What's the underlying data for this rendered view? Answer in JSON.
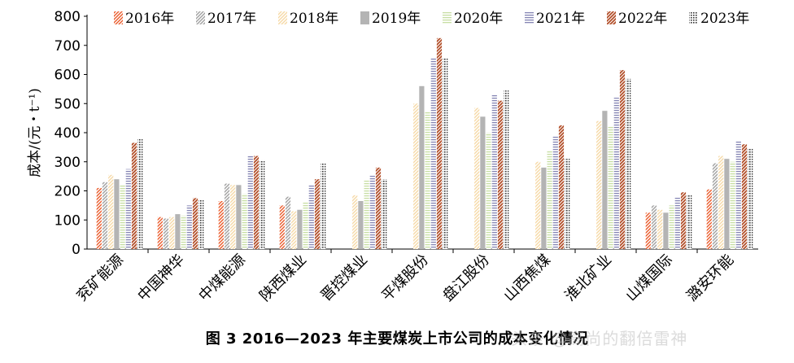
{
  "caption": "图 3   2016—2023 年主要煤炭上市公司的成本变化情况",
  "watermark": "头条 @高尚的翻倍雷神",
  "chart_data": {
    "type": "bar",
    "ylabel": "成本/(元・t⁻¹)",
    "ylim": [
      0,
      800
    ],
    "yticks": [
      0,
      100,
      200,
      300,
      400,
      500,
      600,
      700,
      800
    ],
    "grid": false,
    "legend_position": "top",
    "categories": [
      "兖矿能源",
      "中国神华",
      "中煤能源",
      "陕西煤业",
      "晋控煤业",
      "平煤股份",
      "盘江股份",
      "山西焦煤",
      "淮北矿业",
      "山煤国际",
      "潞安环能"
    ],
    "series": [
      {
        "name": "2016年",
        "color": "#ea5a2a",
        "pattern": "diag",
        "values": [
          210,
          110,
          165,
          150,
          null,
          null,
          null,
          null,
          null,
          125,
          205
        ]
      },
      {
        "name": "2017年",
        "color": "#a0a0a0",
        "pattern": "diag",
        "values": [
          230,
          105,
          225,
          180,
          null,
          null,
          null,
          null,
          null,
          150,
          295
        ]
      },
      {
        "name": "2018年",
        "color": "#f6d9a5",
        "pattern": "diag",
        "values": [
          255,
          110,
          220,
          130,
          185,
          500,
          485,
          300,
          440,
          135,
          320
        ]
      },
      {
        "name": "2019年",
        "color": "#b4b4b4",
        "pattern": "solid",
        "values": [
          240,
          120,
          220,
          135,
          165,
          560,
          455,
          280,
          475,
          125,
          310
        ]
      },
      {
        "name": "2020年",
        "color": "#c7dea3",
        "pattern": "hlines",
        "values": [
          220,
          115,
          190,
          160,
          235,
          470,
          400,
          340,
          420,
          150,
          300
        ]
      },
      {
        "name": "2021年",
        "color": "#8585b4",
        "pattern": "hlines",
        "values": [
          275,
          150,
          320,
          220,
          255,
          655,
          530,
          390,
          520,
          180,
          370
        ]
      },
      {
        "name": "2022年",
        "color": "#b24e28",
        "pattern": "diagdense",
        "values": [
          365,
          175,
          320,
          240,
          280,
          725,
          510,
          425,
          615,
          195,
          360
        ]
      },
      {
        "name": "2023年",
        "color": "#333333",
        "pattern": "dots",
        "values": [
          380,
          170,
          305,
          295,
          240,
          655,
          545,
          310,
          585,
          185,
          345
        ]
      }
    ]
  }
}
